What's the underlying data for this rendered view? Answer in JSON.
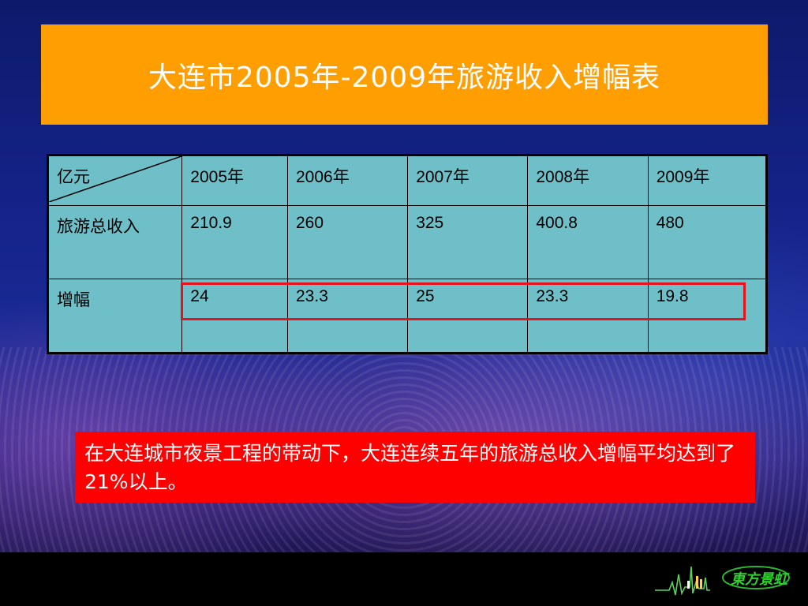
{
  "title": "大连市2005年-2009年旅游收入增幅表",
  "table": {
    "header": [
      "亿元",
      "2005年",
      "2006年",
      "2007年",
      "2008年",
      "2009年"
    ],
    "rows": [
      [
        "旅游总收入",
        "210.9",
        "260",
        "325",
        "400.8",
        "480"
      ],
      [
        "增幅",
        "24",
        "23.3",
        "25",
        "23.3",
        "19.8"
      ]
    ]
  },
  "note": "在大连城市夜景工程的带动下，大连连续五年的旅游总收入增幅平均达到了21%以上。",
  "logo": {
    "text": "東方景虹",
    "icon": "city-skyline-pulse-icon"
  },
  "colors": {
    "title_bg": "#ff9e00",
    "table_bg": "#6fbfc8",
    "highlight": "#e8121e",
    "note_bg": "#ff0000"
  }
}
